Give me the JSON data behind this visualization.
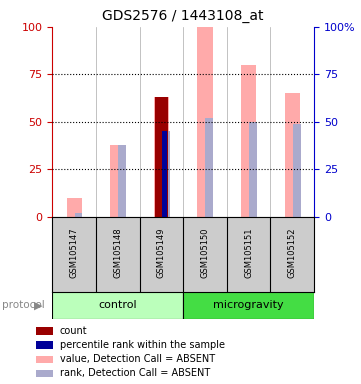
{
  "title": "GDS2576 / 1443108_at",
  "samples": [
    "GSM105147",
    "GSM105148",
    "GSM105149",
    "GSM105150",
    "GSM105151",
    "GSM105152"
  ],
  "groups": [
    "control",
    "control",
    "control",
    "microgravity",
    "microgravity",
    "microgravity"
  ],
  "ylim": [
    0,
    100
  ],
  "pink_values": [
    10,
    38,
    63,
    100,
    80,
    65
  ],
  "light_blue_values": [
    2,
    38,
    45,
    52,
    50,
    49
  ],
  "dark_red_index": 2,
  "dark_red_value": 63,
  "dark_blue_index": 2,
  "dark_blue_value": 45,
  "pink_color": "#ffaaaa",
  "light_blue_color": "#aaaacc",
  "dark_red_color": "#990000",
  "dark_blue_color": "#000099",
  "bg_color": "#ffffff",
  "plot_bg": "#ffffff",
  "axis_left_color": "#cc0000",
  "axis_right_color": "#0000cc",
  "dotted_line_values": [
    25,
    50,
    75
  ],
  "sample_box_color": "#cccccc",
  "control_color_light": "#bbffbb",
  "control_color_dark": "#44dd44",
  "legend_items": [
    {
      "label": "count",
      "color": "#990000"
    },
    {
      "label": "percentile rank within the sample",
      "color": "#000099"
    },
    {
      "label": "value, Detection Call = ABSENT",
      "color": "#ffaaaa"
    },
    {
      "label": "rank, Detection Call = ABSENT",
      "color": "#aaaacc"
    }
  ],
  "protocol_label": "protocol",
  "control_label": "control",
  "microgravity_label": "microgravity"
}
